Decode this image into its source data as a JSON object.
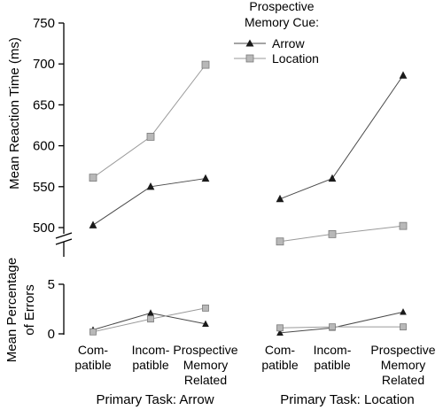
{
  "chart_data": [
    {
      "type": "line",
      "panel": "reaction-time",
      "ylabel": "Mean Reaction Time (ms)",
      "ylim": [
        500,
        750
      ],
      "yticks": [
        500,
        550,
        600,
        650,
        700,
        750
      ],
      "axis_break": true,
      "grid": false,
      "legend": {
        "title_lines": [
          "Prospective",
          "Memory Cue:"
        ],
        "placement": "top-right",
        "entries": [
          "Arrow",
          "Location"
        ]
      },
      "groups": [
        {
          "label": "Primary Task: Arrow",
          "categories": [
            [
              "Com-",
              "patible"
            ],
            [
              "Incom-",
              "patible"
            ],
            [
              "Prospective",
              "Memory",
              "Related"
            ]
          ],
          "series": [
            {
              "name": "Arrow",
              "marker": "triangle",
              "values": [
                503,
                550,
                560
              ]
            },
            {
              "name": "Location",
              "marker": "square",
              "values": [
                561,
                611,
                699
              ]
            }
          ]
        },
        {
          "label": "Primary Task: Location",
          "categories": [
            [
              "Com-",
              "patible"
            ],
            [
              "Incom-",
              "patible"
            ],
            [
              "Prospective",
              "Memory",
              "Related"
            ]
          ],
          "series": [
            {
              "name": "Arrow",
              "marker": "triangle",
              "values": [
                535,
                560,
                686
              ]
            },
            {
              "name": "Location",
              "marker": "square",
              "values": [
                483,
                492,
                502
              ]
            }
          ]
        }
      ]
    },
    {
      "type": "line",
      "panel": "errors",
      "ylabel_lines": [
        "Mean Percentage",
        "of Errors"
      ],
      "ylim": [
        0,
        5
      ],
      "yticks": [
        0,
        5
      ],
      "grid": false,
      "groups": [
        {
          "label": "Primary Task: Arrow",
          "series": [
            {
              "name": "Arrow",
              "marker": "triangle",
              "values": [
                0.4,
                2.1,
                1.0
              ]
            },
            {
              "name": "Location",
              "marker": "square",
              "values": [
                0.2,
                1.5,
                2.6
              ]
            }
          ]
        },
        {
          "label": "Primary Task: Location",
          "series": [
            {
              "name": "Arrow",
              "marker": "triangle",
              "values": [
                0.1,
                0.6,
                2.2
              ]
            },
            {
              "name": "Location",
              "marker": "square",
              "values": [
                0.6,
                0.7,
                0.7
              ]
            }
          ]
        }
      ]
    }
  ],
  "colors": {
    "arrow_line": "#4a4a4a",
    "arrow_marker": "#1a1a1a",
    "location_line": "#9a9a9a",
    "location_marker_fill": "#b8b8b8",
    "location_marker_stroke": "#7a7a7a",
    "axis": "#000000"
  }
}
